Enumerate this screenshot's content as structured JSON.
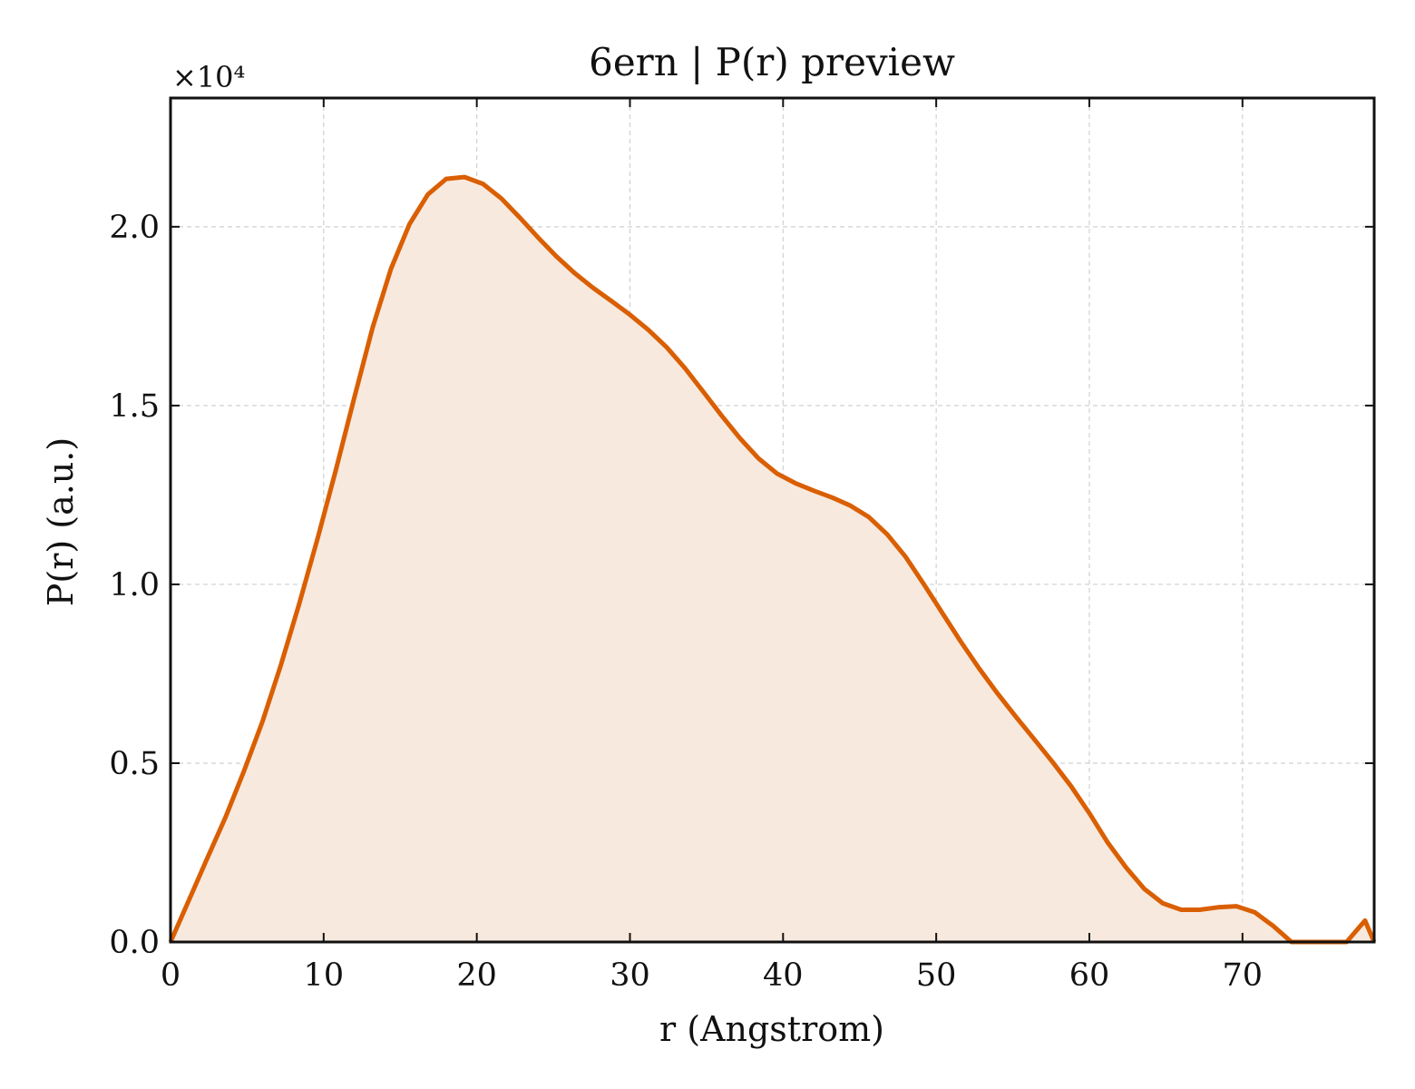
{
  "chart_data": {
    "type": "area",
    "title": "6ern | P(r) preview",
    "xlabel": "r (Angstrom)",
    "ylabel": "P(r) (a.u.)",
    "y_offset_label": "×10⁴",
    "xlim": [
      0,
      78.6
    ],
    "ylim": [
      0,
      2.36
    ],
    "xticks": [
      0,
      10,
      20,
      30,
      40,
      50,
      60,
      70
    ],
    "xtick_labels": [
      "0",
      "10",
      "20",
      "30",
      "40",
      "50",
      "60",
      "70"
    ],
    "yticks": [
      0.0,
      0.5,
      1.0,
      1.5,
      2.0
    ],
    "ytick_labels": [
      "0.0",
      "0.5",
      "1.0",
      "1.5",
      "2.0"
    ],
    "grid": true,
    "legend": "none",
    "colors": {
      "line": "#d95f02",
      "fill": "#f8e9df",
      "grid": "#d0d0d0",
      "axes": "#111111"
    },
    "series": [
      {
        "x": [
          0,
          1.2,
          2.4,
          3.6,
          4.8,
          6.0,
          7.2,
          8.4,
          9.6,
          10.8,
          12.0,
          13.2,
          14.4,
          15.6,
          16.8,
          18.0,
          19.2,
          20.4,
          21.6,
          22.8,
          24.0,
          25.2,
          26.4,
          27.6,
          28.8,
          30.0,
          31.2,
          32.4,
          33.6,
          34.8,
          36.0,
          37.2,
          38.4,
          39.6,
          40.8,
          42.0,
          43.2,
          44.4,
          45.6,
          46.8,
          48.0,
          49.2,
          50.4,
          51.6,
          52.8,
          54.0,
          55.2,
          56.4,
          57.6,
          58.8,
          60.0,
          61.2,
          62.4,
          63.6,
          64.8,
          66.0,
          67.2,
          68.4,
          69.6,
          70.8,
          72.0,
          73.2,
          74.4,
          75.6,
          76.8,
          78.0,
          78.6
        ],
        "y": [
          0.0,
          0.117,
          0.234,
          0.35,
          0.478,
          0.616,
          0.774,
          0.945,
          1.128,
          1.32,
          1.522,
          1.719,
          1.883,
          2.007,
          2.09,
          2.134,
          2.139,
          2.12,
          2.079,
          2.026,
          1.97,
          1.917,
          1.87,
          1.829,
          1.792,
          1.754,
          1.712,
          1.663,
          1.604,
          1.538,
          1.471,
          1.408,
          1.352,
          1.31,
          1.283,
          1.262,
          1.243,
          1.22,
          1.188,
          1.14,
          1.077,
          1.0,
          0.92,
          0.84,
          0.765,
          0.695,
          0.63,
          0.567,
          0.503,
          0.436,
          0.36,
          0.278,
          0.208,
          0.148,
          0.108,
          0.09,
          0.09,
          0.097,
          0.1,
          0.083,
          0.045,
          0.0,
          0.0,
          0.0,
          0.0,
          0.06,
          0.0
        ]
      }
    ]
  }
}
